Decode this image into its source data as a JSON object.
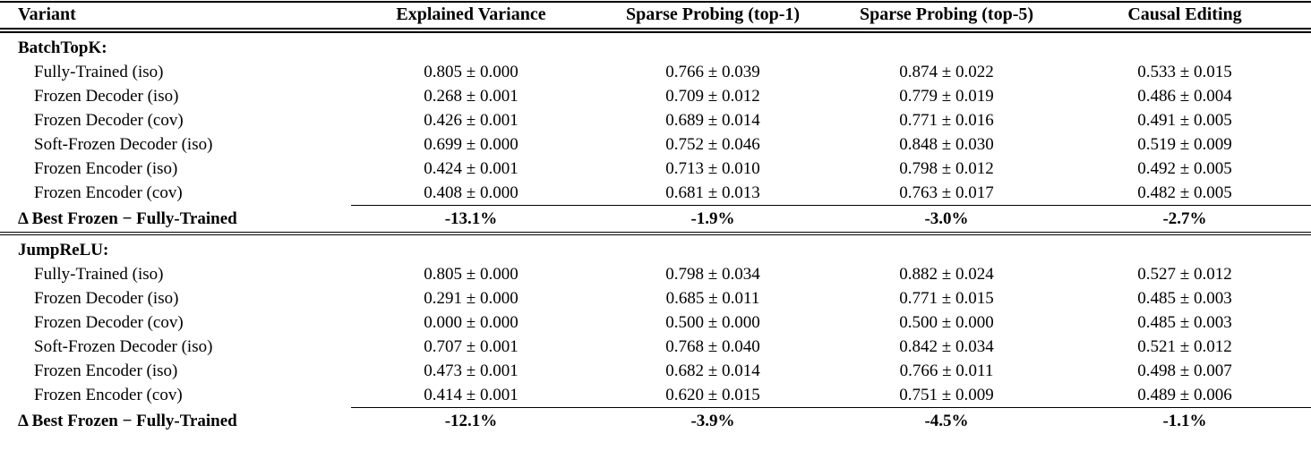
{
  "table": {
    "columns": [
      "Variant",
      "Explained Variance",
      "Sparse Probing (top-1)",
      "Sparse Probing (top-5)",
      "Causal Editing"
    ],
    "sections": [
      {
        "name": "BatchTopK:",
        "rows": [
          {
            "variant": "Fully-Trained (iso)",
            "values": [
              "0.805 ± 0.000",
              "0.766 ± 0.039",
              "0.874 ± 0.022",
              "0.533 ± 0.015"
            ]
          },
          {
            "variant": "Frozen Decoder (iso)",
            "values": [
              "0.268 ± 0.001",
              "0.709 ± 0.012",
              "0.779 ± 0.019",
              "0.486 ± 0.004"
            ]
          },
          {
            "variant": "Frozen Decoder (cov)",
            "values": [
              "0.426 ± 0.001",
              "0.689 ± 0.014",
              "0.771 ± 0.016",
              "0.491 ± 0.005"
            ]
          },
          {
            "variant": "Soft-Frozen Decoder (iso)",
            "values": [
              "0.699 ± 0.000",
              "0.752 ± 0.046",
              "0.848 ± 0.030",
              "0.519 ± 0.009"
            ]
          },
          {
            "variant": "Frozen Encoder (iso)",
            "values": [
              "0.424 ± 0.001",
              "0.713 ± 0.010",
              "0.798 ± 0.012",
              "0.492 ± 0.005"
            ]
          },
          {
            "variant": "Frozen Encoder (cov)",
            "values": [
              "0.408 ± 0.000",
              "0.681 ± 0.013",
              "0.763 ± 0.017",
              "0.482 ± 0.005"
            ]
          }
        ],
        "delta": {
          "label": "Δ Best Frozen − Fully-Trained",
          "values": [
            "-13.1%",
            "-1.9%",
            "-3.0%",
            "-2.7%"
          ]
        }
      },
      {
        "name": "JumpReLU:",
        "rows": [
          {
            "variant": "Fully-Trained (iso)",
            "values": [
              "0.805 ± 0.000",
              "0.798 ± 0.034",
              "0.882 ± 0.024",
              "0.527 ± 0.012"
            ]
          },
          {
            "variant": "Frozen Decoder (iso)",
            "values": [
              "0.291 ± 0.000",
              "0.685 ± 0.011",
              "0.771 ± 0.015",
              "0.485 ± 0.003"
            ]
          },
          {
            "variant": "Frozen Decoder (cov)",
            "values": [
              "0.000 ± 0.000",
              "0.500 ± 0.000",
              "0.500 ± 0.000",
              "0.485 ± 0.003"
            ]
          },
          {
            "variant": "Soft-Frozen Decoder (iso)",
            "values": [
              "0.707 ± 0.001",
              "0.768 ± 0.040",
              "0.842 ± 0.034",
              "0.521 ± 0.012"
            ]
          },
          {
            "variant": "Frozen Encoder (iso)",
            "values": [
              "0.473 ± 0.001",
              "0.682 ± 0.014",
              "0.766 ± 0.011",
              "0.498 ± 0.007"
            ]
          },
          {
            "variant": "Frozen Encoder (cov)",
            "values": [
              "0.414 ± 0.001",
              "0.620 ± 0.015",
              "0.751 ± 0.009",
              "0.489 ± 0.006"
            ]
          }
        ],
        "delta": {
          "label": "Δ Best Frozen − Fully-Trained",
          "values": [
            "-12.1%",
            "-3.9%",
            "-4.5%",
            "-1.1%"
          ]
        }
      }
    ]
  }
}
